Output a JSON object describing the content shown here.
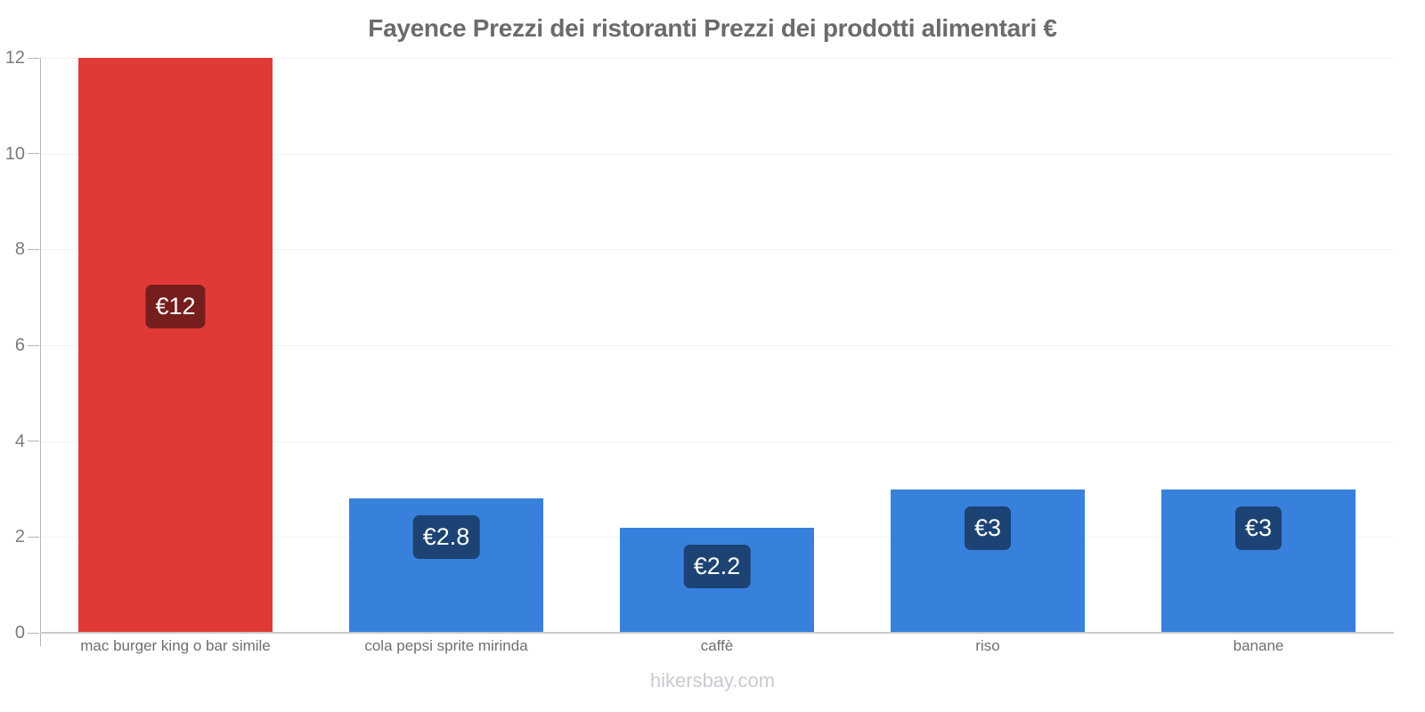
{
  "chart_data": {
    "type": "bar",
    "title": "Fayence Prezzi dei ristoranti Prezzi dei prodotti alimentari €",
    "categories": [
      "mac burger king o bar simile",
      "cola pepsi sprite mirinda",
      "caffè",
      "riso",
      "banane"
    ],
    "values": [
      12,
      2.8,
      2.2,
      3,
      3
    ],
    "value_labels": [
      "€12",
      "€2.8",
      "€2.2",
      "€3",
      "€3"
    ],
    "bar_colors": [
      "#e03a38",
      "#3781dd",
      "#3781dd",
      "#3781dd",
      "#3781dd"
    ],
    "xlabel": "",
    "ylabel": "",
    "ylim": [
      0,
      12
    ],
    "yticks": [
      0,
      2,
      4,
      6,
      8,
      10,
      12
    ],
    "grid": true,
    "legend": false,
    "currency": "€"
  },
  "colors": {
    "red_bar": "#e03a38",
    "blue_bar": "#3781dd",
    "badge_overlay": "rgba(0,0,0,0.48)",
    "title_text": "#6a6b6d",
    "tick_text": "#7a7b7e",
    "category_text": "#6e6f72",
    "axis_line": "#b4b5b7",
    "gridline": "#f2f2f3",
    "watermark_text": "#c8cbd1"
  },
  "footer": {
    "text": "hikersbay.com"
  }
}
